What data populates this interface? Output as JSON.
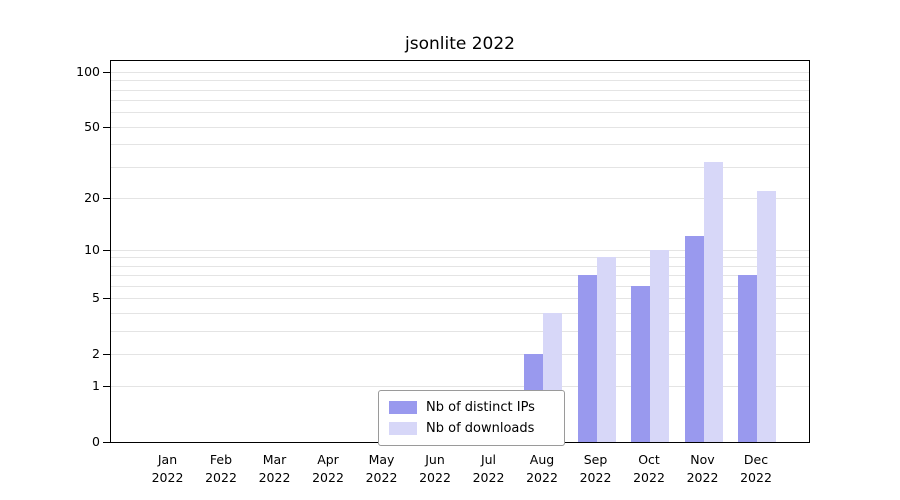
{
  "chart_data": {
    "type": "bar",
    "title": "jsonlite 2022",
    "year": "2022",
    "scale": "log1p",
    "grid": true,
    "categories": [
      "Jan",
      "Feb",
      "Mar",
      "Apr",
      "May",
      "Jun",
      "Jul",
      "Aug",
      "Sep",
      "Oct",
      "Nov",
      "Dec"
    ],
    "series": [
      {
        "name": "Nb of distinct IPs",
        "color": "#9999ee",
        "values": [
          0,
          0,
          0,
          0,
          0,
          0,
          0,
          2,
          7,
          6,
          12,
          7
        ]
      },
      {
        "name": "Nb of downloads",
        "color": "#d7d7f8",
        "values": [
          0,
          0,
          0,
          0,
          0,
          0,
          0,
          4,
          9,
          10,
          32,
          22
        ]
      }
    ],
    "y_ticks": [
      0,
      1,
      2,
      5,
      10,
      20,
      50,
      100
    ],
    "gridlines": [
      1,
      2,
      3,
      4,
      5,
      6,
      7,
      8,
      9,
      10,
      20,
      30,
      40,
      50,
      60,
      70,
      80,
      90,
      100
    ],
    "ylim": [
      0,
      100
    ],
    "legend_position": "bottom-center"
  }
}
